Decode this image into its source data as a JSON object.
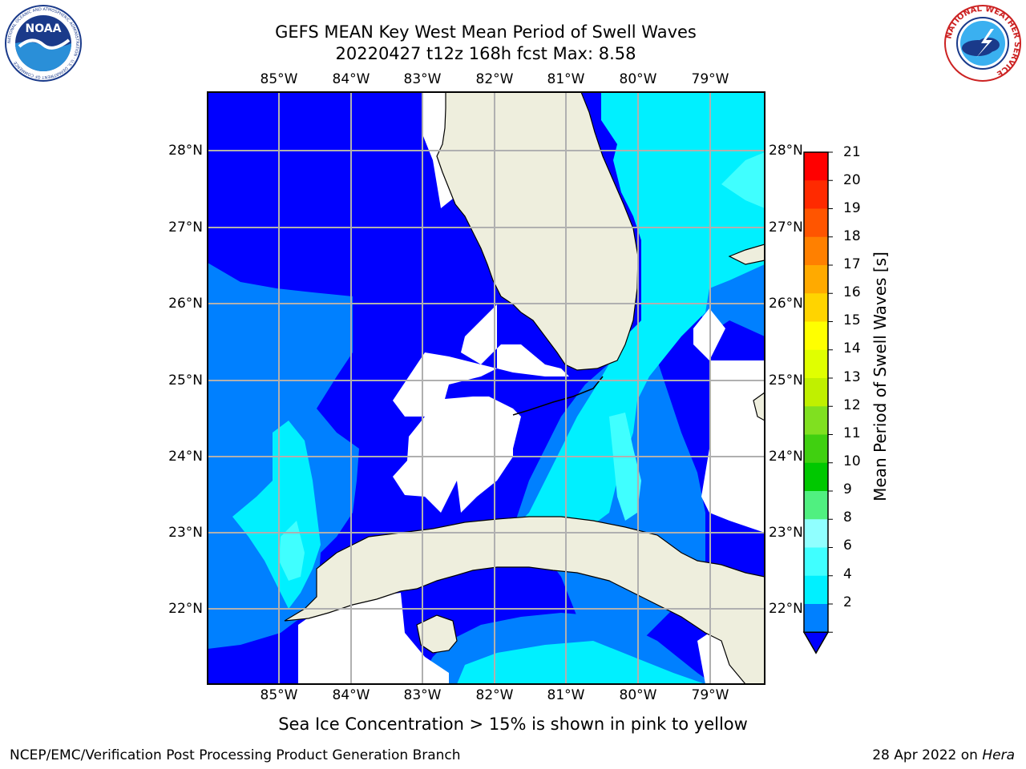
{
  "header": {
    "title_line1": "GEFS MEAN Key West Mean Period of Swell Waves",
    "title_line2": "20220427 t12z 168h fcst   Max: 8.58"
  },
  "logos": {
    "left": {
      "icon": "noaa-logo",
      "text": "NOAA",
      "ring_text": "NATIONAL OCEANIC AND ATMOSPHERIC ADMINISTRATION · U.S. DEPARTMENT OF COMMERCE"
    },
    "right": {
      "icon": "nws-logo",
      "ring_text": "NATIONAL WEATHER SERVICE"
    }
  },
  "map": {
    "lon_ticks": [
      "85°W",
      "84°W",
      "83°W",
      "82°W",
      "81°W",
      "80°W",
      "79°W"
    ],
    "lat_ticks": [
      "28°N",
      "27°N",
      "26°N",
      "25°N",
      "24°N",
      "23°N",
      "22°N"
    ],
    "colors": {
      "land": "#eeeedd",
      "no_data": "#ffffff",
      "grid": "#b0b0b0",
      "coast": "#000000"
    }
  },
  "colorbar": {
    "label": "Mean Period of Swell Waves [s]",
    "ticks": [
      "21",
      "20",
      "19",
      "18",
      "17",
      "16",
      "15",
      "14",
      "13",
      "12",
      "11",
      "10",
      "9",
      "8",
      "6",
      "4",
      "2"
    ],
    "colors": [
      "#ff0000",
      "#ff2a00",
      "#ff5500",
      "#ff8000",
      "#ffaa00",
      "#ffd400",
      "#ffff00",
      "#e0ff00",
      "#c0f000",
      "#80e020",
      "#40d010",
      "#00c800",
      "#50f080",
      "#90ffff",
      "#40ffff",
      "#00f0ff",
      "#0080ff"
    ],
    "under_color": "#0000ff"
  },
  "notes": {
    "ice": "Sea Ice Concentration > 15% is shown in pink to yellow"
  },
  "footer": {
    "left": "NCEP/EMC/Verification Post Processing Product Generation Branch",
    "right_date": "28 Apr 2022 on",
    "right_host": "Hera"
  }
}
